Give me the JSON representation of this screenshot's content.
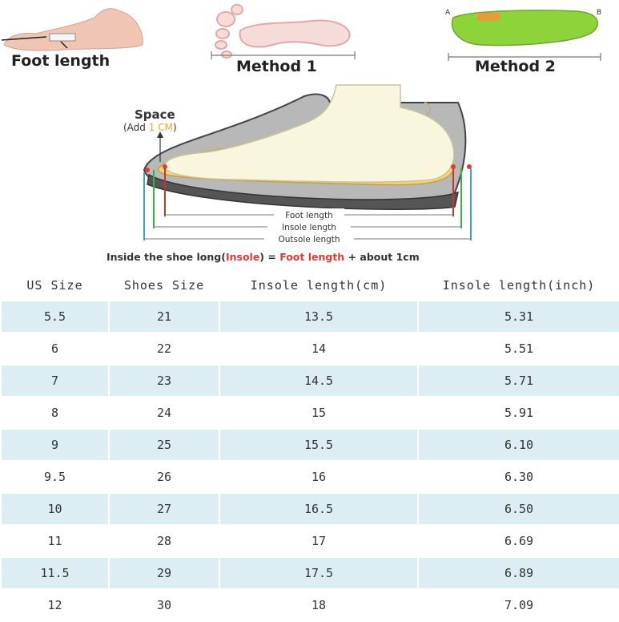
{
  "header": {
    "foot_length_label": "Foot length",
    "method1_label": "Method 1",
    "method2_label": "Method 2",
    "insole_end_a": "A",
    "insole_end_b": "B"
  },
  "diagram": {
    "space_label": "Space",
    "add_prefix": "(Add",
    "add_value": "1 CM",
    "add_suffix": ")",
    "foot_length": "Foot length",
    "insole_length": "Insole length",
    "outsole_length": "Outsole length"
  },
  "caption": {
    "part1": "Inside the shoe long(",
    "insole": "Insole",
    "part2": ") = ",
    "foot_length": "Foot length",
    "part3": " + about 1cm"
  },
  "table": {
    "headers": [
      "US Size",
      "Shoes Size",
      "Insole length(cm)",
      "Insole length(inch)"
    ],
    "rows": [
      [
        "5.5",
        "21",
        "13.5",
        "5.31"
      ],
      [
        "6",
        "22",
        "14",
        "5.51"
      ],
      [
        "7",
        "23",
        "14.5",
        "5.71"
      ],
      [
        "8",
        "24",
        "15",
        "5.91"
      ],
      [
        "9",
        "25",
        "15.5",
        "6.10"
      ],
      [
        "9.5",
        "26",
        "16",
        "6.30"
      ],
      [
        "10",
        "27",
        "16.5",
        "6.50"
      ],
      [
        "11",
        "28",
        "17",
        "6.69"
      ],
      [
        "11.5",
        "29",
        "17.5",
        "6.89"
      ],
      [
        "12",
        "30",
        "18",
        "7.09"
      ]
    ]
  },
  "colors": {
    "row_shade": "#dcedf3",
    "accent_red": "#e53935",
    "accent_orange": "#f5a623",
    "insole_green": "#8cd43a"
  }
}
